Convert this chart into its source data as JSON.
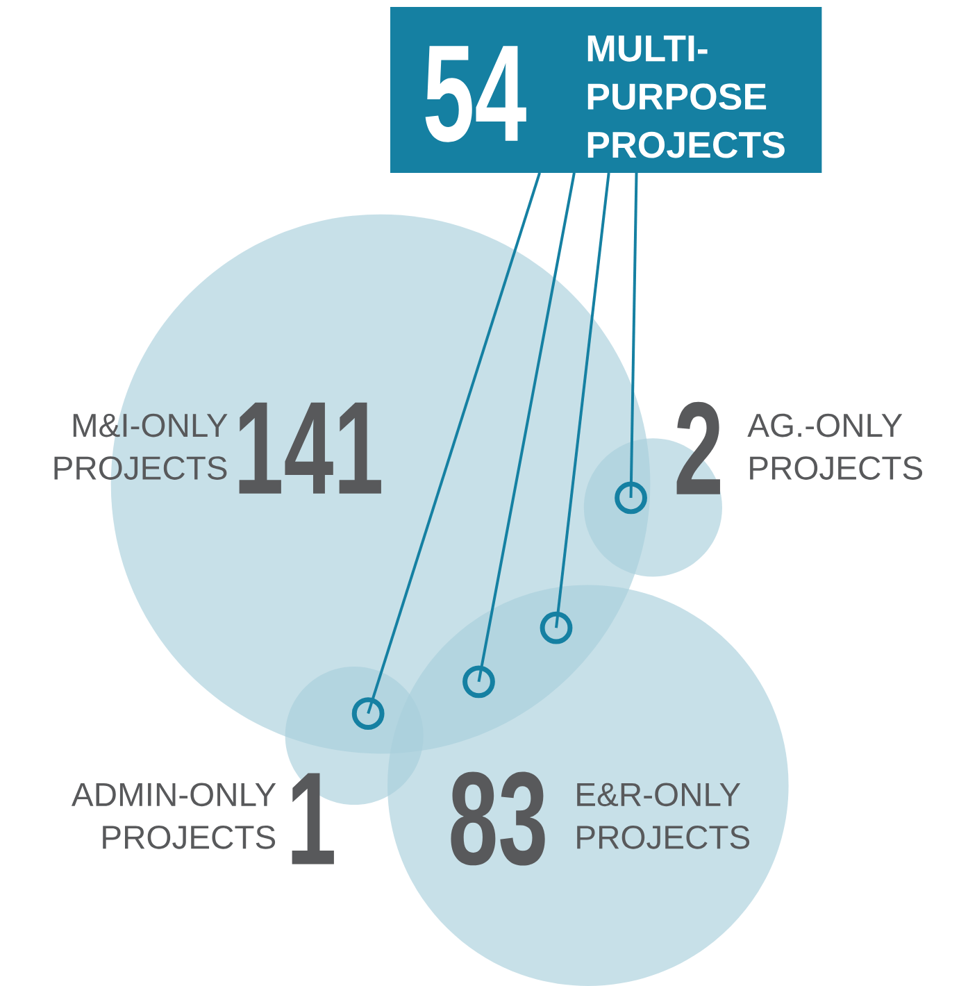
{
  "chart_data": {
    "type": "other",
    "categories": [
      "MULTI-PURPOSE PROJECTS",
      "M&I-ONLY PROJECTS",
      "AG.-ONLY PROJECTS",
      "ADMIN-ONLY PROJECTS",
      "E&R-ONLY PROJECTS"
    ],
    "values": [
      54,
      141,
      2,
      1,
      83
    ],
    "data_labels": true,
    "colors": [
      "#1580a2",
      "#a9d0dc",
      "#a9d0dc",
      "#a9d0dc",
      "#a9d0dc"
    ]
  }
}
